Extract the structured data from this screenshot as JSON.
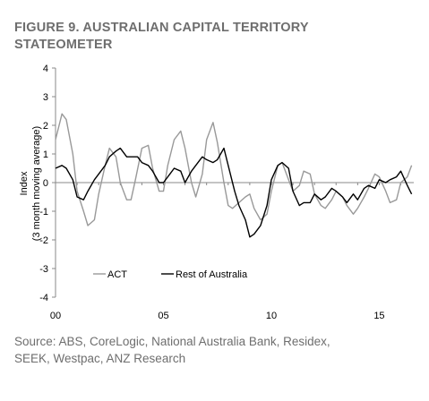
{
  "title_line1": "FIGURE 9. AUSTRALIAN CAPITAL TERRITORY",
  "title_line2": "STATEOMETER",
  "source_line1": "Source: ABS, CoreLogic, National Australia Bank, Residex,",
  "source_line2": "SEEK, Westpac, ANZ Research",
  "chart_data": {
    "type": "line",
    "ylabel_line1": "Index",
    "ylabel_line2": "(3 month moving average)",
    "xlim": [
      2000,
      2016.6
    ],
    "ylim": [
      -4,
      4
    ],
    "yticks": [
      -4,
      -3,
      -2,
      -1,
      0,
      1,
      2,
      3,
      4
    ],
    "ytick_labels": [
      "-4",
      "-3",
      "-2",
      "-1",
      "0",
      "1",
      "2",
      "3",
      "4"
    ],
    "xticks": [
      2000,
      2005,
      2010,
      2015
    ],
    "xtick_labels": [
      "00",
      "05",
      "10",
      "15"
    ],
    "grid": false,
    "legend_position": "bottom-left",
    "series": [
      {
        "name": "ACT",
        "color": "#999999",
        "x": [
          2000.0,
          2000.3,
          2000.5,
          2000.8,
          2001.0,
          2001.3,
          2001.5,
          2001.8,
          2002.0,
          2002.3,
          2002.5,
          2002.8,
          2003.0,
          2003.3,
          2003.5,
          2003.7,
          2004.0,
          2004.3,
          2004.5,
          2004.8,
          2005.0,
          2005.2,
          2005.5,
          2005.8,
          2006.0,
          2006.3,
          2006.5,
          2006.8,
          2007.0,
          2007.3,
          2007.5,
          2007.8,
          2008.0,
          2008.2,
          2008.5,
          2008.8,
          2009.0,
          2009.2,
          2009.5,
          2009.8,
          2010.0,
          2010.3,
          2010.5,
          2010.8,
          2011.0,
          2011.3,
          2011.5,
          2011.8,
          2012.0,
          2012.3,
          2012.5,
          2012.8,
          2013.0,
          2013.3,
          2013.5,
          2013.8,
          2014.0,
          2014.3,
          2014.5,
          2014.8,
          2015.0,
          2015.3,
          2015.5,
          2015.8,
          2016.0,
          2016.3,
          2016.5
        ],
        "y": [
          1.5,
          2.4,
          2.2,
          1.0,
          -0.3,
          -1.0,
          -1.5,
          -1.3,
          -0.4,
          0.6,
          1.2,
          0.9,
          0.0,
          -0.6,
          -0.6,
          0.1,
          1.2,
          1.3,
          0.5,
          -0.3,
          -0.3,
          0.6,
          1.5,
          1.8,
          1.2,
          0.0,
          -0.5,
          0.3,
          1.5,
          2.1,
          1.4,
          0.0,
          -0.8,
          -0.9,
          -0.7,
          -0.5,
          -0.4,
          -0.9,
          -1.3,
          -1.1,
          -0.3,
          0.6,
          0.7,
          0.1,
          -0.3,
          -0.1,
          0.4,
          0.3,
          -0.4,
          -0.8,
          -0.9,
          -0.6,
          -0.3,
          -0.5,
          -0.8,
          -1.1,
          -0.9,
          -0.5,
          -0.2,
          0.3,
          0.2,
          -0.3,
          -0.7,
          -0.6,
          0.0,
          0.2,
          0.6
        ]
      },
      {
        "name": "Rest of Australia",
        "color": "#000000",
        "x": [
          2000.0,
          2000.3,
          2000.5,
          2000.8,
          2001.0,
          2001.3,
          2001.5,
          2001.8,
          2002.0,
          2002.3,
          2002.5,
          2002.8,
          2003.0,
          2003.3,
          2003.5,
          2003.8,
          2004.0,
          2004.3,
          2004.5,
          2004.8,
          2005.0,
          2005.3,
          2005.5,
          2005.8,
          2006.0,
          2006.3,
          2006.5,
          2006.8,
          2007.0,
          2007.3,
          2007.5,
          2007.8,
          2008.0,
          2008.3,
          2008.5,
          2008.8,
          2009.0,
          2009.2,
          2009.5,
          2009.8,
          2010.0,
          2010.3,
          2010.5,
          2010.8,
          2011.0,
          2011.3,
          2011.5,
          2011.8,
          2012.0,
          2012.3,
          2012.5,
          2012.8,
          2013.0,
          2013.3,
          2013.5,
          2013.8,
          2014.0,
          2014.3,
          2014.5,
          2014.8,
          2015.0,
          2015.3,
          2015.5,
          2015.8,
          2016.0,
          2016.3,
          2016.5
        ],
        "y": [
          0.5,
          0.6,
          0.5,
          0.1,
          -0.5,
          -0.6,
          -0.3,
          0.1,
          0.3,
          0.6,
          0.9,
          1.1,
          1.2,
          0.9,
          0.9,
          0.9,
          0.7,
          0.6,
          0.4,
          0.0,
          0.0,
          0.3,
          0.5,
          0.4,
          0.0,
          0.4,
          0.6,
          0.9,
          0.8,
          0.7,
          0.8,
          1.2,
          0.6,
          -0.3,
          -0.8,
          -1.3,
          -1.9,
          -1.8,
          -1.5,
          -0.8,
          0.1,
          0.6,
          0.7,
          0.5,
          -0.3,
          -0.8,
          -0.7,
          -0.7,
          -0.4,
          -0.6,
          -0.5,
          -0.2,
          -0.3,
          -0.5,
          -0.7,
          -0.4,
          -0.6,
          -0.2,
          -0.1,
          -0.2,
          0.1,
          0.0,
          0.1,
          0.2,
          0.4,
          -0.1,
          -0.4
        ]
      }
    ]
  }
}
